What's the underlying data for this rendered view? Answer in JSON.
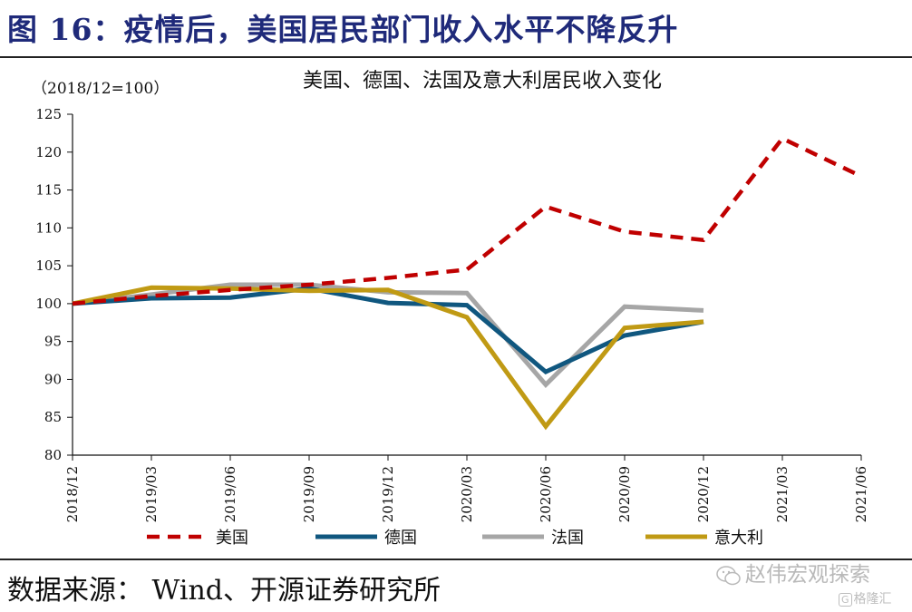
{
  "figure_title": "图 16：疫情后，美国居民部门收入水平不降反升",
  "source_text": "数据来源： Wind、开源证券研究所",
  "watermark_text": "赵伟宏观探索",
  "brand_text": "格隆汇",
  "brand_badge": "G",
  "chart_data": {
    "type": "line",
    "title": "美国、德国、法国及意大利居民收入变化",
    "unit_label": "（2018/12=100）",
    "categories": [
      "2018/12",
      "2019/03",
      "2019/06",
      "2019/09",
      "2019/12",
      "2020/03",
      "2020/06",
      "2020/09",
      "2020/12",
      "2021/03",
      "2021/06"
    ],
    "ylim": [
      80,
      125
    ],
    "yticks": [
      80,
      85,
      90,
      95,
      100,
      105,
      110,
      115,
      120,
      125
    ],
    "grid": false,
    "legend_position": "bottom",
    "series": [
      {
        "name": "美国",
        "color": "#c00000",
        "style": "dashed",
        "values": [
          100,
          101.0,
          101.8,
          102.5,
          103.4,
          104.5,
          112.8,
          109.5,
          108.4,
          121.8,
          116.8
        ]
      },
      {
        "name": "德国",
        "color": "#10577f",
        "style": "solid",
        "values": [
          100,
          100.7,
          100.8,
          102.0,
          100.1,
          99.8,
          91.0,
          95.8,
          97.6,
          null,
          null
        ]
      },
      {
        "name": "法国",
        "color": "#a6a6a6",
        "style": "solid",
        "values": [
          100,
          101.2,
          102.5,
          102.5,
          101.5,
          101.4,
          89.3,
          99.6,
          99.1,
          null,
          null
        ]
      },
      {
        "name": "意大利",
        "color": "#c09a14",
        "style": "solid",
        "values": [
          100,
          102.1,
          102.0,
          101.7,
          101.8,
          98.2,
          83.8,
          96.8,
          97.6,
          null,
          null
        ]
      }
    ]
  }
}
